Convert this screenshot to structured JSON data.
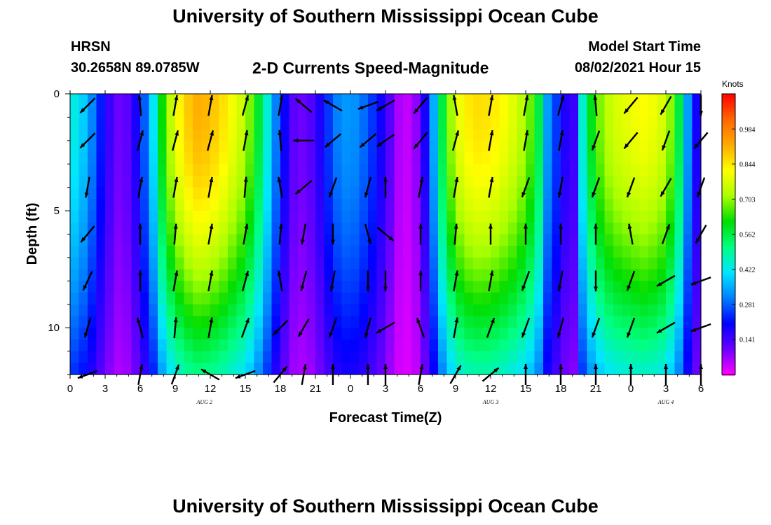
{
  "header": {
    "title": "University of Southern Mississippi Ocean Cube",
    "station": "HRSN",
    "coordinates": "30.2658N  89.0785W",
    "subtitle": "2-D Currents Speed-Magnitude",
    "model_start_label": "Model Start Time",
    "model_start_value": "08/02/2021 Hour 15"
  },
  "footer": {
    "title": "University of Southern Mississippi Ocean Cube"
  },
  "chart_data": {
    "type": "heatmap",
    "title": "2-D Currents Speed-Magnitude",
    "xlabel": "Forecast Time(Z)",
    "ylabel": "Depth (ft)",
    "x_range_hours": [
      0,
      54
    ],
    "y_range_ft": [
      0,
      12
    ],
    "x_tick_hours": [
      0,
      3,
      6,
      9,
      12,
      15,
      18,
      21,
      24,
      27,
      30,
      33,
      36,
      39,
      42,
      45,
      48,
      51,
      54
    ],
    "x_tick_labels": [
      "0",
      "3",
      "6",
      "9",
      "12",
      "15",
      "18",
      "21",
      "0",
      "3",
      "6",
      "9",
      "12",
      "15",
      "18",
      "21",
      "0",
      "3",
      "6"
    ],
    "y_ticks": [
      0,
      5,
      10
    ],
    "y_tick_labels": [
      "0",
      "5",
      "10"
    ],
    "date_labels": [
      {
        "text": "AUG 2",
        "hour": 11.5
      },
      {
        "text": "AUG 3",
        "hour": 36
      },
      {
        "text": "AUG 4",
        "hour": 51
      }
    ],
    "colorbar": {
      "units": "Knots",
      "min": 0.0,
      "max": 1.125,
      "tick_values": [
        0.984,
        0.844,
        0.703,
        0.562,
        0.422,
        0.281,
        0.141
      ],
      "tick_labels": [
        "0.984",
        "0.844",
        "0.703",
        "0.562",
        "0.422",
        "0.281",
        "0.141"
      ],
      "colors": [
        "#ff00ff",
        "#6a00ff",
        "#0000ff",
        "#0080ff",
        "#00e6ff",
        "#00ff80",
        "#00dd00",
        "#aaff00",
        "#ffff00",
        "#ffaa00",
        "#ff6600",
        "#ff0000"
      ]
    },
    "speed_profile": {
      "hours": [
        0,
        1,
        2,
        3,
        4,
        5,
        6,
        7,
        8,
        9,
        10,
        11,
        12,
        13,
        14,
        15,
        16,
        17,
        18,
        19,
        20,
        21,
        22,
        23,
        24,
        25,
        26,
        27,
        28,
        29,
        30,
        31,
        32,
        33,
        34,
        35,
        36,
        37,
        38,
        39,
        40,
        41,
        42,
        43,
        44,
        45,
        46,
        47,
        48,
        49,
        50,
        51,
        52,
        53,
        54
      ],
      "peak_knots": [
        0.45,
        0.4,
        0.3,
        0.18,
        0.1,
        0.12,
        0.22,
        0.38,
        0.65,
        0.8,
        0.88,
        0.92,
        0.9,
        0.86,
        0.8,
        0.74,
        0.6,
        0.42,
        0.24,
        0.12,
        0.1,
        0.14,
        0.24,
        0.32,
        0.34,
        0.3,
        0.24,
        0.16,
        0.06,
        0.04,
        0.1,
        0.32,
        0.6,
        0.78,
        0.84,
        0.86,
        0.85,
        0.82,
        0.78,
        0.72,
        0.6,
        0.3,
        0.22,
        0.1,
        0.5,
        0.66,
        0.74,
        0.78,
        0.8,
        0.82,
        0.8,
        0.76,
        0.6,
        0.3,
        0.12
      ]
    },
    "vectors": {
      "depths_ft": [
        0.5,
        2.0,
        4.0,
        6.0,
        8.0,
        10.0,
        12.0
      ],
      "hours": [
        1.5,
        6,
        9,
        12,
        15,
        18,
        20,
        22.5,
        25.5,
        27,
        30,
        33,
        36,
        39,
        42,
        45,
        48,
        51,
        54
      ],
      "direction_deg": [
        [
          225,
          95,
          80,
          80,
          75,
          80,
          140,
          150,
          200,
          210,
          230,
          100,
          80,
          80,
          75,
          95,
          230,
          240,
          270
        ],
        [
          225,
          75,
          75,
          75,
          80,
          95,
          180,
          220,
          220,
          215,
          230,
          75,
          80,
          80,
          80,
          250,
          230,
          250,
          230
        ],
        [
          260,
          80,
          80,
          80,
          85,
          100,
          220,
          250,
          255,
          90,
          80,
          80,
          80,
          250,
          260,
          250,
          250,
          240,
          250
        ],
        [
          230,
          90,
          85,
          80,
          80,
          85,
          260,
          270,
          285,
          320,
          90,
          85,
          90,
          90,
          90,
          90,
          100,
          70,
          240
        ],
        [
          245,
          90,
          80,
          80,
          75,
          100,
          255,
          260,
          270,
          270,
          90,
          80,
          80,
          250,
          260,
          270,
          250,
          210,
          200
        ],
        [
          255,
          105,
          85,
          80,
          70,
          225,
          240,
          250,
          255,
          210,
          110,
          80,
          70,
          250,
          255,
          250,
          250,
          210,
          200
        ],
        [
          200,
          80,
          70,
          150,
          200,
          50,
          80,
          90,
          90,
          90,
          80,
          60,
          40,
          90,
          90,
          90,
          90,
          90,
          90
        ]
      ]
    }
  }
}
